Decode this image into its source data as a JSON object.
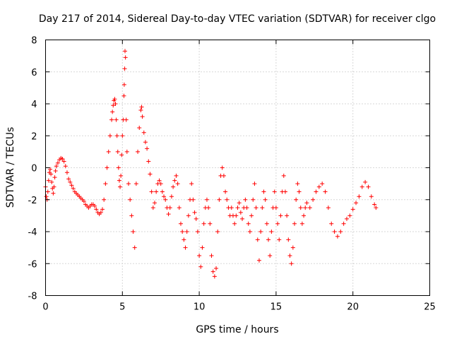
{
  "chart_data": {
    "type": "scatter",
    "title": "Day 217 of 2014, Sidereal Day-to-day VTEC variation (SDTVAR) for receiver clgo",
    "xlabel": "GPS time / hours",
    "ylabel": "SDTVAR / TECUs",
    "xlim": [
      0,
      25
    ],
    "ylim": [
      -8,
      8
    ],
    "xticks": [
      0,
      5,
      10,
      15,
      20,
      25
    ],
    "yticks": [
      -8,
      -6,
      -4,
      -2,
      0,
      2,
      4,
      6,
      8
    ],
    "xtick_labels": [
      "0",
      "5",
      "10",
      "15",
      "20",
      "25"
    ],
    "ytick_labels": [
      "-8",
      "-6",
      "-4",
      "-2",
      "0",
      "2",
      "4",
      "6",
      "8"
    ],
    "grid": true,
    "marker": "+",
    "series": [
      {
        "name": "SDTVAR",
        "color": "#ff0000",
        "points": [
          [
            0.0,
            -1.2
          ],
          [
            0.05,
            -1.8
          ],
          [
            0.1,
            -2.0
          ],
          [
            0.15,
            -1.5
          ],
          [
            0.2,
            -0.8
          ],
          [
            0.25,
            -0.3
          ],
          [
            0.3,
            -0.1
          ],
          [
            0.35,
            -0.4
          ],
          [
            0.4,
            -0.9
          ],
          [
            0.45,
            -1.3
          ],
          [
            0.5,
            -1.6
          ],
          [
            0.55,
            -1.2
          ],
          [
            0.6,
            -0.6
          ],
          [
            0.65,
            -0.2
          ],
          [
            0.7,
            0.1
          ],
          [
            0.8,
            0.3
          ],
          [
            0.9,
            0.5
          ],
          [
            1.0,
            0.6
          ],
          [
            1.1,
            0.55
          ],
          [
            1.2,
            0.4
          ],
          [
            1.3,
            0.1
          ],
          [
            1.4,
            -0.3
          ],
          [
            1.5,
            -0.7
          ],
          [
            1.6,
            -0.9
          ],
          [
            1.7,
            -1.1
          ],
          [
            1.8,
            -1.3
          ],
          [
            1.9,
            -1.5
          ],
          [
            2.0,
            -1.6
          ],
          [
            2.1,
            -1.7
          ],
          [
            2.2,
            -1.8
          ],
          [
            2.3,
            -1.9
          ],
          [
            2.4,
            -2.0
          ],
          [
            2.5,
            -2.1
          ],
          [
            2.6,
            -2.3
          ],
          [
            2.7,
            -2.4
          ],
          [
            2.8,
            -2.5
          ],
          [
            2.9,
            -2.4
          ],
          [
            3.0,
            -2.3
          ],
          [
            3.1,
            -2.3
          ],
          [
            3.2,
            -2.4
          ],
          [
            3.3,
            -2.6
          ],
          [
            3.4,
            -2.8
          ],
          [
            3.5,
            -2.9
          ],
          [
            3.6,
            -2.8
          ],
          [
            3.7,
            -2.6
          ],
          [
            3.8,
            -2.0
          ],
          [
            3.9,
            -1.0
          ],
          [
            4.0,
            0.0
          ],
          [
            4.1,
            1.0
          ],
          [
            4.2,
            2.0
          ],
          [
            4.3,
            3.0
          ],
          [
            4.35,
            3.5
          ],
          [
            4.4,
            3.9
          ],
          [
            4.45,
            4.2
          ],
          [
            4.5,
            4.3
          ],
          [
            4.55,
            4.0
          ],
          [
            4.6,
            3.0
          ],
          [
            4.65,
            2.0
          ],
          [
            4.7,
            1.0
          ],
          [
            4.75,
            0.0
          ],
          [
            4.8,
            -0.8
          ],
          [
            4.85,
            -1.2
          ],
          [
            4.9,
            -0.5
          ],
          [
            4.95,
            0.8
          ],
          [
            5.0,
            2.0
          ],
          [
            5.05,
            3.0
          ],
          [
            5.1,
            4.5
          ],
          [
            5.12,
            5.2
          ],
          [
            5.15,
            6.2
          ],
          [
            5.17,
            7.3
          ],
          [
            5.2,
            6.9
          ],
          [
            5.25,
            3.0
          ],
          [
            5.3,
            1.0
          ],
          [
            5.4,
            -1.0
          ],
          [
            5.5,
            -2.0
          ],
          [
            5.6,
            -3.0
          ],
          [
            5.7,
            -4.0
          ],
          [
            5.8,
            -5.0
          ],
          [
            5.9,
            -1.0
          ],
          [
            6.0,
            1.0
          ],
          [
            6.1,
            2.5
          ],
          [
            6.2,
            3.6
          ],
          [
            6.25,
            3.8
          ],
          [
            6.3,
            3.2
          ],
          [
            6.4,
            2.2
          ],
          [
            6.5,
            1.6
          ],
          [
            6.6,
            1.2
          ],
          [
            6.7,
            0.4
          ],
          [
            6.8,
            -0.4
          ],
          [
            6.9,
            -1.5
          ],
          [
            7.0,
            -2.5
          ],
          [
            7.1,
            -2.2
          ],
          [
            7.2,
            -1.5
          ],
          [
            7.3,
            -1.0
          ],
          [
            7.4,
            -0.8
          ],
          [
            7.5,
            -1.0
          ],
          [
            7.6,
            -1.5
          ],
          [
            7.7,
            -1.8
          ],
          [
            7.8,
            -2.0
          ],
          [
            7.9,
            -2.5
          ],
          [
            8.0,
            -2.9
          ],
          [
            8.1,
            -2.5
          ],
          [
            8.2,
            -1.8
          ],
          [
            8.3,
            -1.2
          ],
          [
            8.4,
            -0.8
          ],
          [
            8.5,
            -0.5
          ],
          [
            8.6,
            -1.0
          ],
          [
            8.7,
            -2.5
          ],
          [
            8.8,
            -3.5
          ],
          [
            8.9,
            -4.0
          ],
          [
            9.0,
            -4.5
          ],
          [
            9.1,
            -5.0
          ],
          [
            9.2,
            -4.0
          ],
          [
            9.3,
            -3.0
          ],
          [
            9.4,
            -2.0
          ],
          [
            9.5,
            -1.0
          ],
          [
            9.6,
            -2.0
          ],
          [
            9.7,
            -2.8
          ],
          [
            9.8,
            -3.2
          ],
          [
            9.9,
            -4.0
          ],
          [
            10.0,
            -5.5
          ],
          [
            10.1,
            -6.2
          ],
          [
            10.2,
            -5.0
          ],
          [
            10.3,
            -3.5
          ],
          [
            10.4,
            -2.5
          ],
          [
            10.5,
            -2.0
          ],
          [
            10.6,
            -2.5
          ],
          [
            10.7,
            -3.5
          ],
          [
            10.8,
            -5.5
          ],
          [
            10.9,
            -6.5
          ],
          [
            11.0,
            -6.8
          ],
          [
            11.1,
            -6.3
          ],
          [
            11.2,
            -4.0
          ],
          [
            11.3,
            -2.0
          ],
          [
            11.4,
            -0.5
          ],
          [
            11.5,
            0.0
          ],
          [
            11.6,
            -0.5
          ],
          [
            11.7,
            -1.5
          ],
          [
            11.8,
            -2.0
          ],
          [
            11.9,
            -2.5
          ],
          [
            12.0,
            -3.0
          ],
          [
            12.1,
            -2.5
          ],
          [
            12.2,
            -3.0
          ],
          [
            12.3,
            -3.5
          ],
          [
            12.4,
            -3.0
          ],
          [
            12.5,
            -2.5
          ],
          [
            12.6,
            -2.2
          ],
          [
            12.7,
            -2.8
          ],
          [
            12.8,
            -3.2
          ],
          [
            12.9,
            -2.5
          ],
          [
            13.0,
            -2.0
          ],
          [
            13.1,
            -2.5
          ],
          [
            13.2,
            -3.5
          ],
          [
            13.3,
            -4.0
          ],
          [
            13.4,
            -3.0
          ],
          [
            13.5,
            -2.0
          ],
          [
            13.6,
            -1.0
          ],
          [
            13.7,
            -2.5
          ],
          [
            13.8,
            -4.5
          ],
          [
            13.9,
            -5.8
          ],
          [
            14.0,
            -4.0
          ],
          [
            14.1,
            -2.5
          ],
          [
            14.2,
            -1.5
          ],
          [
            14.3,
            -2.0
          ],
          [
            14.4,
            -3.5
          ],
          [
            14.5,
            -4.5
          ],
          [
            14.6,
            -5.5
          ],
          [
            14.7,
            -4.0
          ],
          [
            14.8,
            -2.5
          ],
          [
            14.9,
            -1.5
          ],
          [
            15.0,
            -2.5
          ],
          [
            15.1,
            -3.5
          ],
          [
            15.2,
            -4.5
          ],
          [
            15.3,
            -3.0
          ],
          [
            15.4,
            -1.5
          ],
          [
            15.5,
            -0.5
          ],
          [
            15.6,
            -1.5
          ],
          [
            15.7,
            -3.0
          ],
          [
            15.8,
            -4.5
          ],
          [
            15.9,
            -5.5
          ],
          [
            16.0,
            -6.0
          ],
          [
            16.1,
            -5.0
          ],
          [
            16.2,
            -3.5
          ],
          [
            16.3,
            -2.0
          ],
          [
            16.4,
            -1.0
          ],
          [
            16.5,
            -1.5
          ],
          [
            16.6,
            -2.5
          ],
          [
            16.7,
            -3.5
          ],
          [
            16.8,
            -3.0
          ],
          [
            16.9,
            -2.5
          ],
          [
            17.0,
            -2.2
          ],
          [
            17.2,
            -2.5
          ],
          [
            17.4,
            -2.0
          ],
          [
            17.6,
            -1.5
          ],
          [
            17.8,
            -1.2
          ],
          [
            18.0,
            -1.0
          ],
          [
            18.2,
            -1.5
          ],
          [
            18.4,
            -2.5
          ],
          [
            18.6,
            -3.5
          ],
          [
            18.8,
            -4.0
          ],
          [
            19.0,
            -4.3
          ],
          [
            19.2,
            -4.0
          ],
          [
            19.4,
            -3.5
          ],
          [
            19.6,
            -3.2
          ],
          [
            19.8,
            -3.0
          ],
          [
            20.0,
            -2.6
          ],
          [
            20.2,
            -2.2
          ],
          [
            20.4,
            -1.8
          ],
          [
            20.6,
            -1.2
          ],
          [
            20.8,
            -0.9
          ],
          [
            21.0,
            -1.2
          ],
          [
            21.2,
            -1.8
          ],
          [
            21.4,
            -2.3
          ],
          [
            21.5,
            -2.5
          ]
        ]
      }
    ]
  }
}
